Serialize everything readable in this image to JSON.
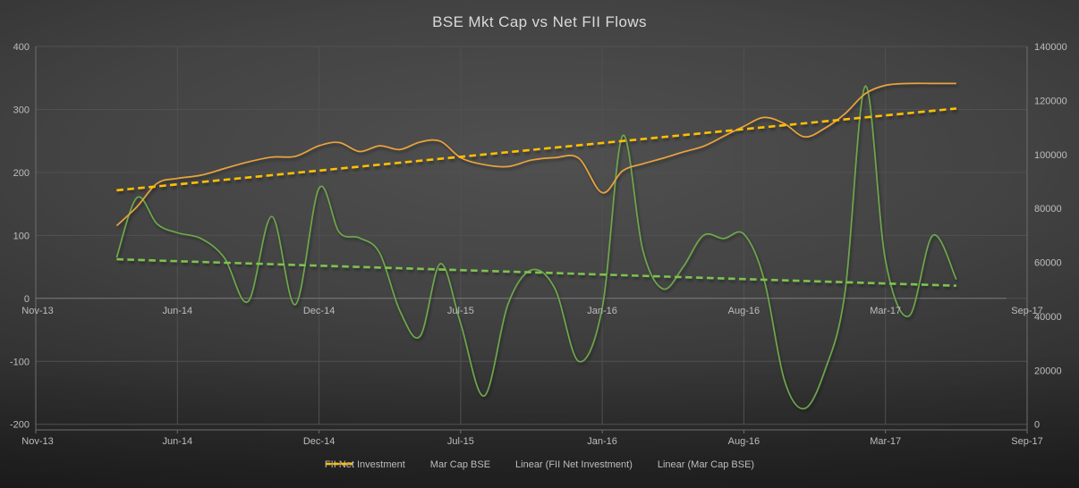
{
  "title": "BSE Mkt Cap vs Net FII Flows",
  "colors": {
    "fii_line": "#6CA74C",
    "mktcap_line": "#E8A33C",
    "fii_trend": "#7DC24F",
    "mktcap_trend": "#FFC000",
    "grid": "#515151",
    "axis": "#6E6E6E",
    "zero_axis": "#7A7A7A",
    "text": "#BDBDBD",
    "title_text": "#DADADA"
  },
  "chart_data": {
    "type": "line",
    "title": "BSE Mkt Cap vs Net FII Flows",
    "x_tick_labels": [
      "Nov-13",
      "Jun-14",
      "Dec-14",
      "Jul-15",
      "Jan-16",
      "Aug-16",
      "Mar-17",
      "Sep-17"
    ],
    "x_tick_months": [
      0,
      7,
      13,
      20,
      26,
      33,
      40,
      46
    ],
    "x_axis_rows": 2,
    "grid": true,
    "legend_position": "bottom",
    "left_axis": {
      "ticks": [
        400,
        300,
        200,
        100,
        0,
        -100,
        -200
      ],
      "min": -200,
      "max": 400
    },
    "right_axis": {
      "ticks": [
        140000,
        120000,
        100000,
        80000,
        60000,
        40000,
        20000,
        0
      ],
      "min": 0,
      "max": 140000
    },
    "start_month_index": 4,
    "categories": [
      "Mar-14",
      "Apr-14",
      "May-14",
      "Jun-14",
      "Jul-14",
      "Aug-14",
      "Sep-14",
      "Oct-14",
      "Nov-14",
      "Dec-14",
      "Jan-15",
      "Feb-15",
      "Mar-15",
      "Apr-15",
      "May-15",
      "Jun-15",
      "Jul-15",
      "Aug-15",
      "Sep-15",
      "Oct-15",
      "Nov-15",
      "Dec-15",
      "Jan-16",
      "Feb-16",
      "Mar-16",
      "Apr-16",
      "May-16",
      "Jun-16",
      "Jul-16",
      "Aug-16",
      "Sep-16",
      "Oct-16",
      "Nov-16",
      "Dec-16",
      "Jan-17",
      "Feb-17",
      "Mar-17",
      "Apr-17",
      "May-17",
      "Jun-17"
    ],
    "series": [
      {
        "name": "FII Net Investment",
        "axis": "left",
        "style": "solid",
        "values": [
          65,
          160,
          118,
          104,
          95,
          64,
          -5,
          130,
          -10,
          175,
          105,
          96,
          72,
          -20,
          -60,
          55,
          -40,
          -155,
          -10,
          45,
          15,
          -100,
          -15,
          258,
          77,
          15,
          50,
          100,
          95,
          102,
          30,
          -130,
          -175,
          -115,
          10,
          337,
          60,
          -28,
          100,
          30
        ]
      },
      {
        "name": "Mar Cap BSE",
        "axis": "right",
        "style": "solid",
        "values": [
          73600,
          80600,
          89300,
          91100,
          92300,
          94800,
          97200,
          99000,
          99300,
          103200,
          104400,
          101100,
          103200,
          101800,
          104600,
          104900,
          98800,
          96200,
          95500,
          97900,
          98800,
          98600,
          85800,
          93900,
          96500,
          98600,
          100900,
          103000,
          106700,
          110400,
          113700,
          111400,
          106500,
          109700,
          115100,
          122500,
          125600,
          126300,
          126300,
          126300
        ]
      },
      {
        "name": "Linear (FII Net Investment)",
        "axis": "left",
        "style": "dashed",
        "trend_start": 62,
        "trend_end": 20
      },
      {
        "name": "Linear (Mar Cap BSE)",
        "axis": "right",
        "style": "dashed",
        "trend_start": 86700,
        "trend_end": 117000
      }
    ]
  }
}
